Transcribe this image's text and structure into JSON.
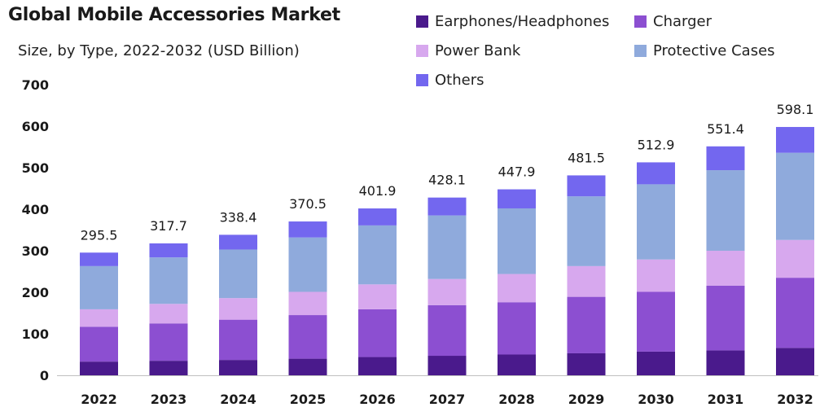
{
  "chart_data": {
    "type": "bar",
    "stacked": true,
    "title": "Global Mobile Accessories Market",
    "subtitle": "Size, by Type, 2022-2032 (USD Billion)",
    "xlabel": "",
    "ylabel": "",
    "ylim": [
      0,
      700
    ],
    "yticks": [
      0,
      100,
      200,
      300,
      400,
      500,
      600,
      700
    ],
    "grid": false,
    "legend_position": "top-right",
    "categories": [
      "2022",
      "2023",
      "2024",
      "2025",
      "2026",
      "2027",
      "2028",
      "2029",
      "2030",
      "2031",
      "2032"
    ],
    "totals": [
      "295.5",
      "317.7",
      "338.4",
      "370.5",
      "401.9",
      "428.1",
      "447.9",
      "481.5",
      "512.9",
      "551.4",
      "598.1"
    ],
    "series": [
      {
        "name": "Earphones/Headphones",
        "color": "#4a1a8c",
        "values": [
          33,
          35,
          37,
          40,
          44,
          47,
          50,
          53,
          57,
          60,
          66
        ]
      },
      {
        "name": "Charger",
        "color": "#8c4fd1",
        "values": [
          84,
          90,
          97,
          105,
          115,
          122,
          126,
          136,
          144,
          156,
          169
        ]
      },
      {
        "name": "Power Bank",
        "color": "#d7a8ee",
        "values": [
          42,
          47,
          52,
          56,
          60,
          63,
          68,
          74,
          78,
          84,
          91
        ]
      },
      {
        "name": "Protective Cases",
        "color": "#8faadc",
        "values": [
          104,
          112,
          117,
          131,
          142,
          153,
          158,
          168,
          181,
          194,
          210
        ]
      },
      {
        "name": "Others",
        "color": "#7367ef",
        "values": [
          32.5,
          33.7,
          35.4,
          38.5,
          40.9,
          43.1,
          45.9,
          50.5,
          52.9,
          57.4,
          62.1
        ]
      }
    ]
  }
}
